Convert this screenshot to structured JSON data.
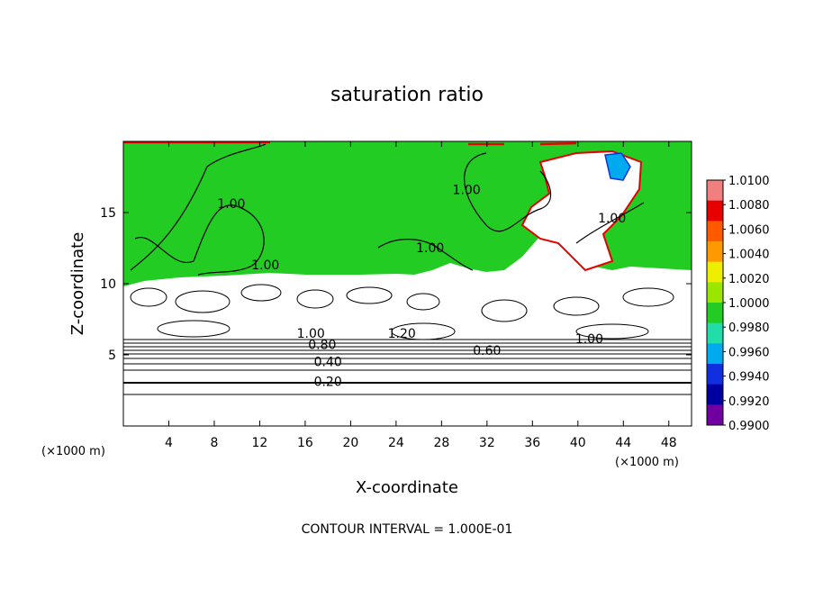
{
  "chart_data": {
    "type": "heatmap",
    "title": "saturation ratio",
    "xlabel": "X-coordinate",
    "ylabel": "Z-coordinate",
    "x_unit_left": "(×1000 m)",
    "x_unit_right": "(×1000 m)",
    "footer": "CONTOUR INTERVAL = 1.000E-01",
    "xlim": [
      0,
      50
    ],
    "ylim": [
      0,
      20
    ],
    "x_ticks": [
      4,
      8,
      12,
      16,
      20,
      24,
      28,
      32,
      36,
      40,
      44,
      48
    ],
    "y_ticks": [
      5,
      10,
      15
    ],
    "colorbar": {
      "labels": [
        "1.0100",
        "1.0080",
        "1.0060",
        "1.0040",
        "1.0020",
        "1.0000",
        "0.9980",
        "0.9960",
        "0.9940",
        "0.9920",
        "0.9900"
      ],
      "colors": [
        "#f08080",
        "#e60000",
        "#ff5a00",
        "#ff9900",
        "#eeee00",
        "#9ae600",
        "#22cc22",
        "#22ddaa",
        "#00aaee",
        "#1030e0",
        "#0000a0",
        "#7000a0"
      ]
    },
    "region_colors": {
      "upper": "#22cc22",
      "lower": "#ffffff",
      "cloud": "#ffffff",
      "edge": "#e60000"
    },
    "contour_labels": [
      {
        "text": "1.00",
        "x": 9.5,
        "y": 15.5
      },
      {
        "text": "1.00",
        "x": 12.5,
        "y": 11.2
      },
      {
        "text": "1.00",
        "x": 30.2,
        "y": 16.5
      },
      {
        "text": "1.00",
        "x": 27.0,
        "y": 12.4
      },
      {
        "text": "1.00",
        "x": 43.0,
        "y": 14.5
      },
      {
        "text": "1.00",
        "x": 16.5,
        "y": 6.4
      },
      {
        "text": "0.80",
        "x": 17.5,
        "y": 5.6
      },
      {
        "text": "1.20",
        "x": 24.5,
        "y": 6.4
      },
      {
        "text": "0.60",
        "x": 32.0,
        "y": 5.2
      },
      {
        "text": "1.00",
        "x": 41.0,
        "y": 6.0
      },
      {
        "text": "0.40",
        "x": 18.0,
        "y": 4.4
      },
      {
        "text": "0.20",
        "x": 18.0,
        "y": 3.0
      }
    ]
  }
}
